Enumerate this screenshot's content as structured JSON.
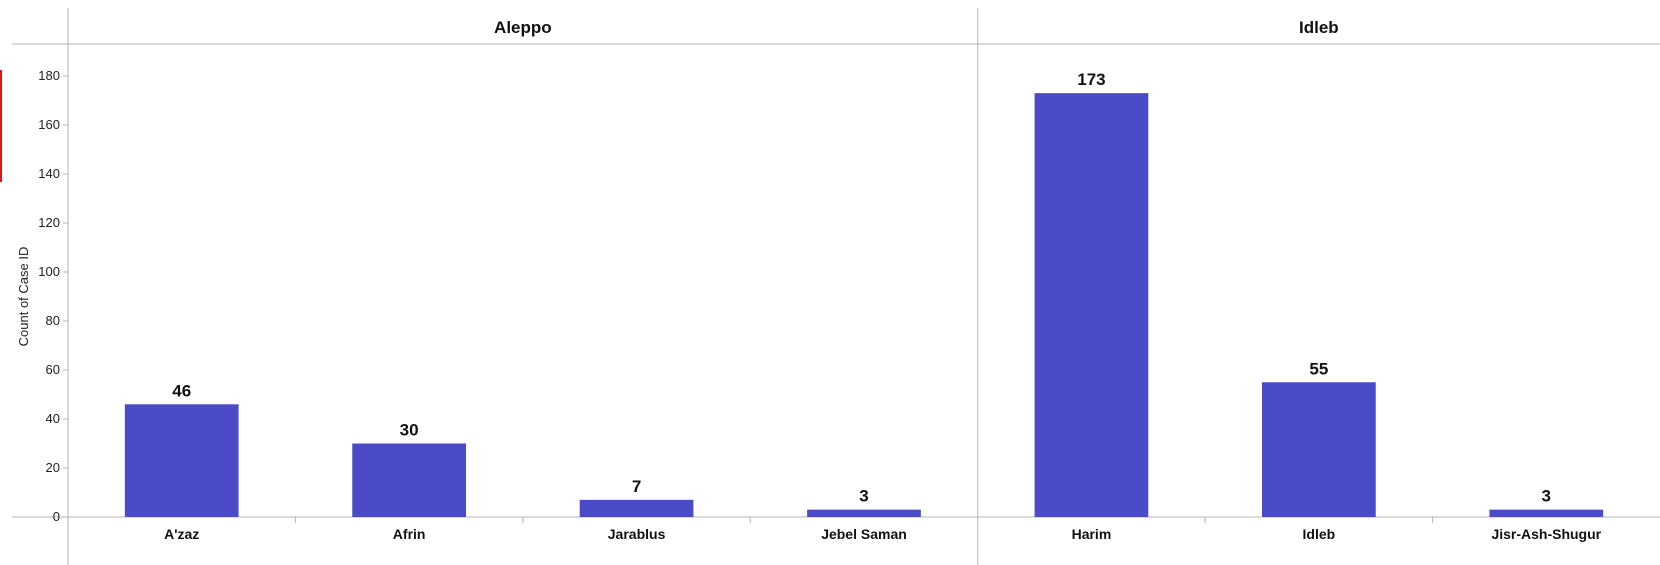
{
  "chart_data": {
    "type": "bar",
    "ylabel": "Count of Case ID",
    "ylim": [
      0,
      190
    ],
    "yticks": [
      0,
      20,
      40,
      60,
      80,
      100,
      120,
      140,
      160,
      180
    ],
    "grid": false,
    "bar_color": "#4b4bc8",
    "accent_color": "#d11a1a",
    "panels": [
      {
        "title": "Aleppo",
        "categories": [
          "A'zaz",
          "Afrin",
          "Jarablus",
          "Jebel Saman"
        ],
        "values": [
          46,
          30,
          7,
          3
        ]
      },
      {
        "title": "Idleb",
        "categories": [
          "Harim",
          "Idleb",
          "Jisr-Ash-Shugur"
        ],
        "values": [
          173,
          55,
          3
        ]
      }
    ]
  }
}
